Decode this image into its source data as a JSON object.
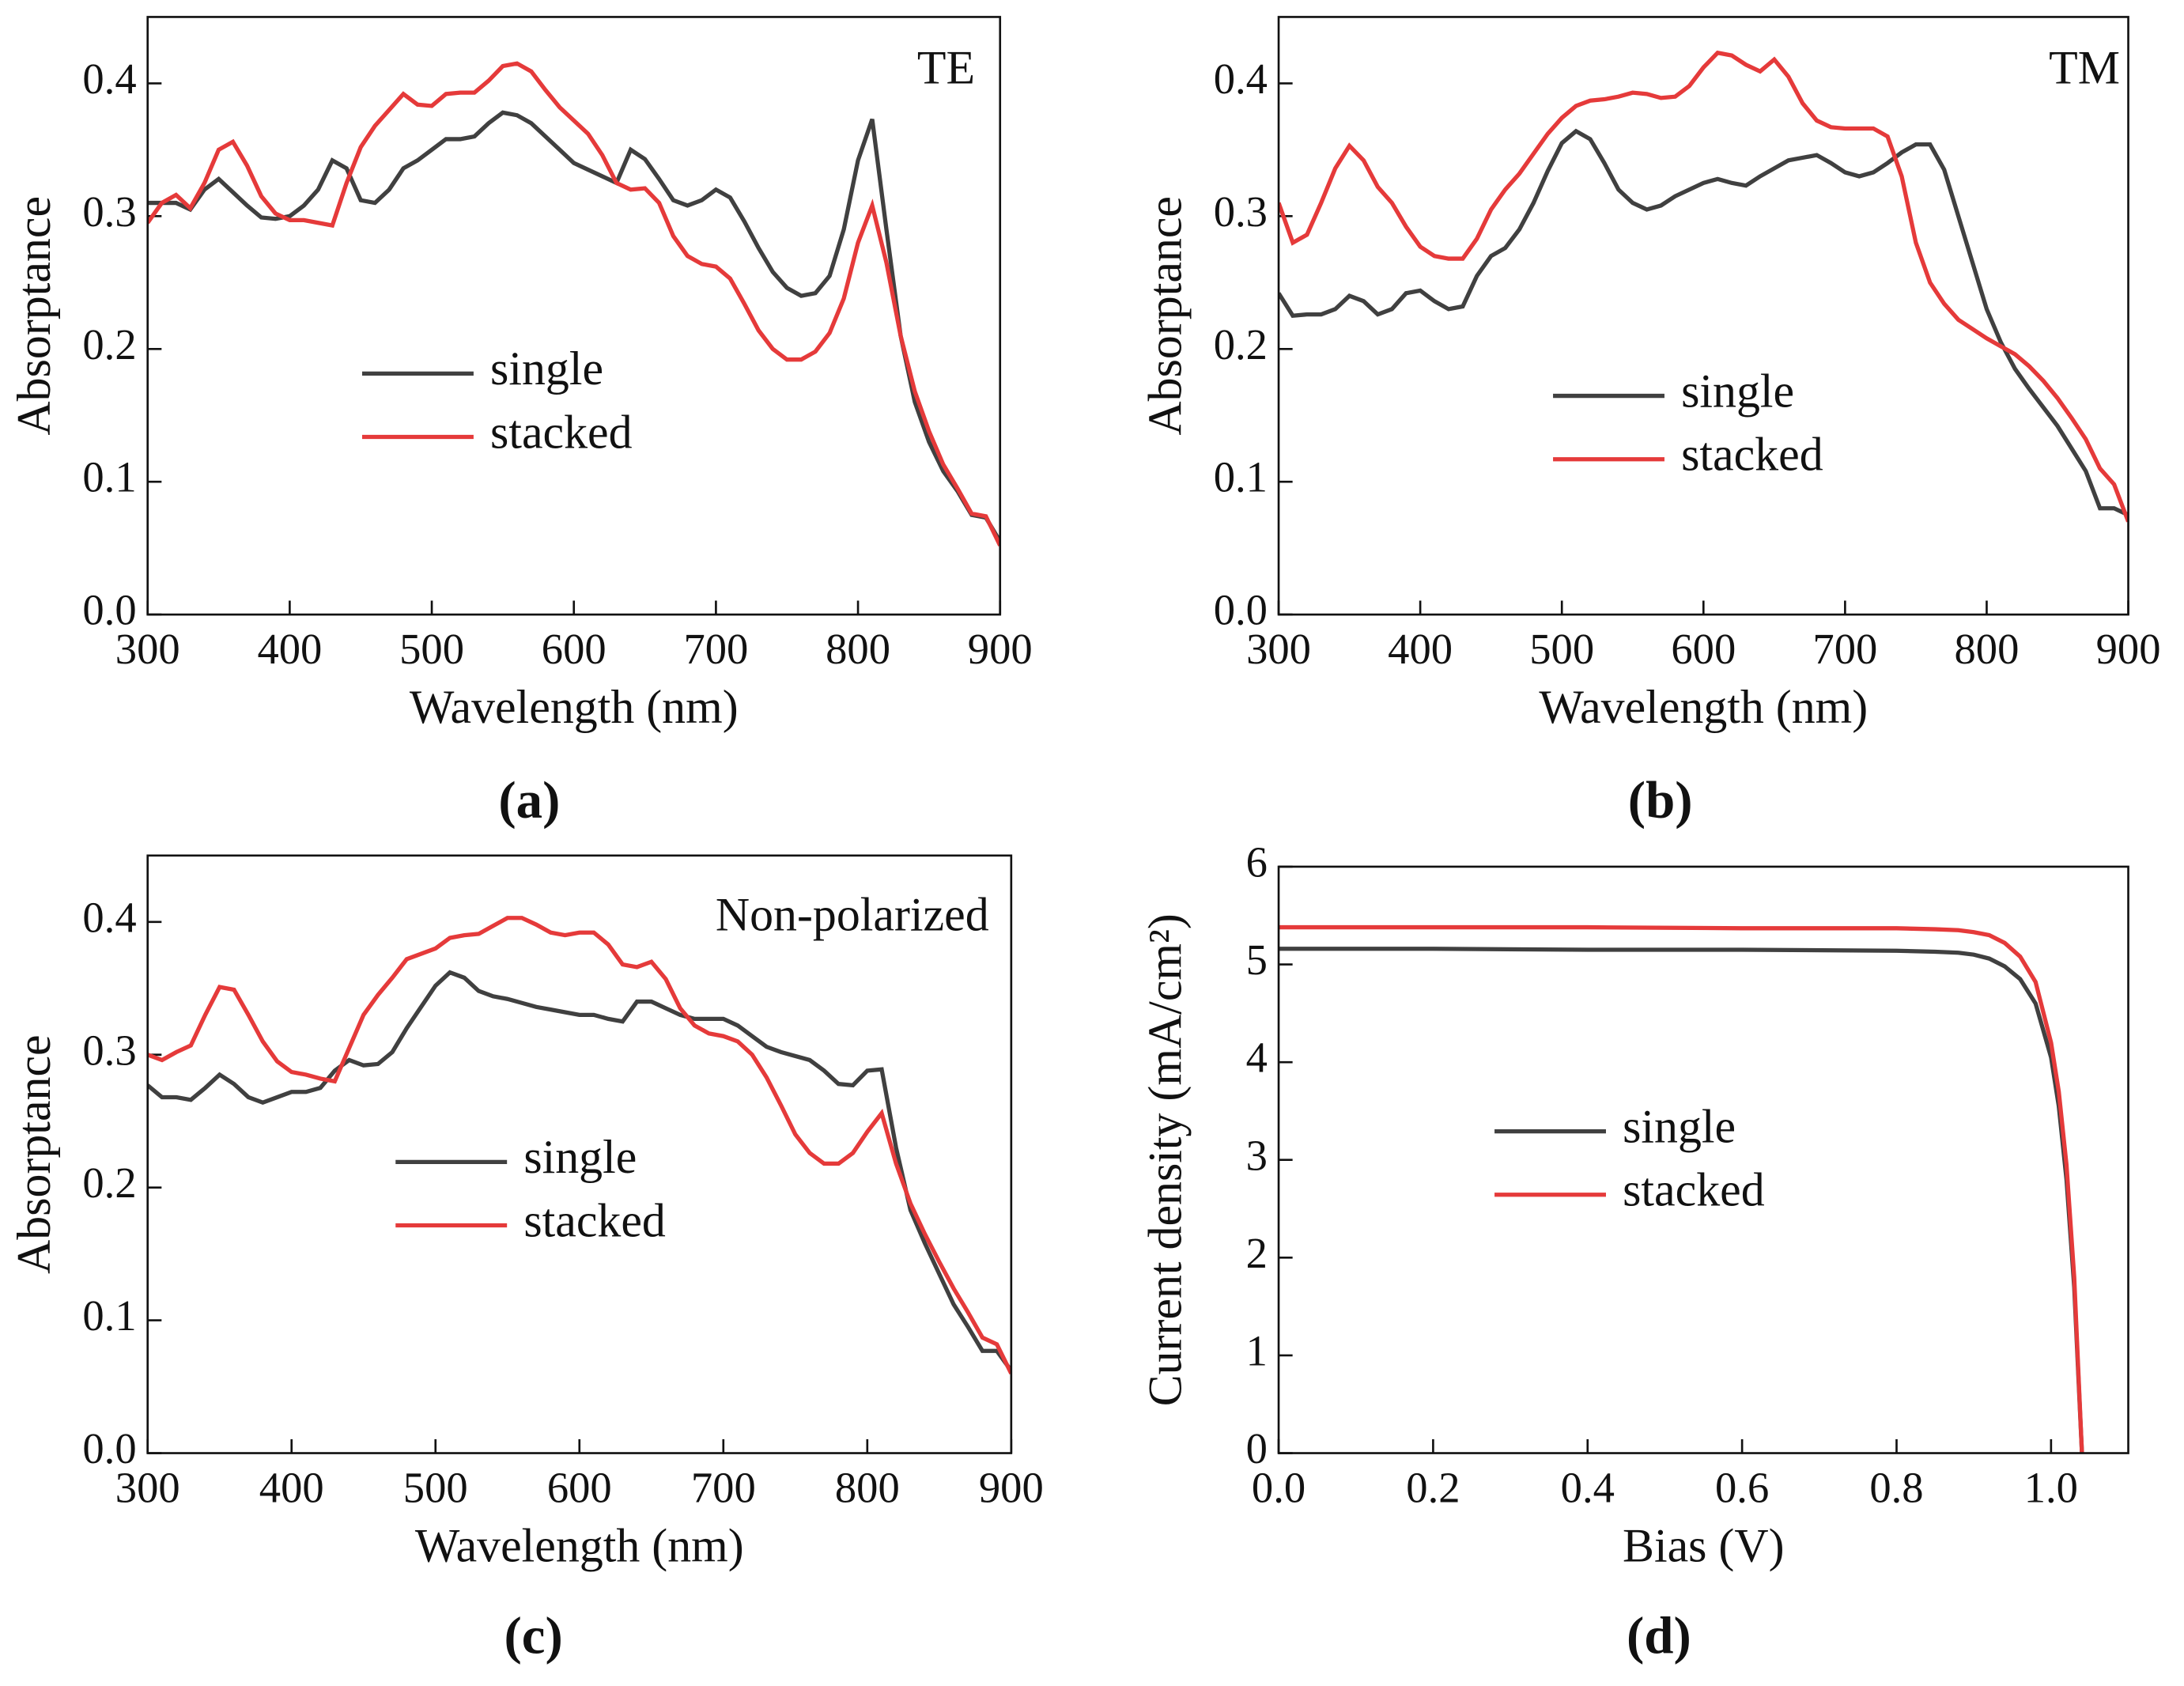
{
  "chart_data": [
    {
      "type": "line",
      "panel": "(a)",
      "annotation": "TE",
      "xlabel": "Wavelength (nm)",
      "ylabel": "Absorptance",
      "xlim": [
        300,
        900
      ],
      "ylim": [
        0,
        0.45
      ],
      "xticks": [
        300,
        400,
        500,
        600,
        700,
        800,
        900
      ],
      "yticks": [
        {
          "value": 0,
          "label": "0.0"
        },
        0.1,
        0.2,
        0.3,
        0.4
      ],
      "x": [
        300,
        310,
        320,
        330,
        340,
        350,
        360,
        370,
        380,
        390,
        400,
        410,
        420,
        430,
        440,
        450,
        460,
        470,
        480,
        490,
        500,
        510,
        520,
        530,
        540,
        550,
        560,
        570,
        580,
        590,
        600,
        610,
        620,
        630,
        640,
        650,
        660,
        670,
        680,
        690,
        700,
        710,
        720,
        730,
        740,
        750,
        760,
        770,
        780,
        790,
        800,
        810,
        820,
        830,
        840,
        850,
        860,
        870,
        880,
        890,
        900
      ],
      "series": [
        {
          "name": "single",
          "color": "#404040",
          "values": [
            0.31,
            0.31,
            0.31,
            0.305,
            0.32,
            0.328,
            0.318,
            0.308,
            0.299,
            0.298,
            0.3,
            0.308,
            0.32,
            0.342,
            0.336,
            0.312,
            0.31,
            0.32,
            0.336,
            0.342,
            0.35,
            0.358,
            0.358,
            0.36,
            0.37,
            0.378,
            0.376,
            0.37,
            0.36,
            0.35,
            0.34,
            0.335,
            0.33,
            0.325,
            0.35,
            0.343,
            0.328,
            0.312,
            0.308,
            0.312,
            0.32,
            0.314,
            0.296,
            0.276,
            0.258,
            0.246,
            0.24,
            0.242,
            0.255,
            0.29,
            0.342,
            0.373,
            0.29,
            0.21,
            0.16,
            0.13,
            0.108,
            0.093,
            0.075,
            0.073,
            0.055
          ]
        },
        {
          "name": "stacked",
          "color": "#e53a3a",
          "values": [
            0.295,
            0.31,
            0.316,
            0.306,
            0.325,
            0.35,
            0.356,
            0.338,
            0.315,
            0.302,
            0.297,
            0.297,
            0.295,
            0.293,
            0.325,
            0.352,
            0.368,
            0.38,
            0.392,
            0.384,
            0.383,
            0.392,
            0.393,
            0.393,
            0.402,
            0.413,
            0.415,
            0.409,
            0.395,
            0.382,
            0.372,
            0.362,
            0.346,
            0.325,
            0.32,
            0.321,
            0.31,
            0.285,
            0.27,
            0.264,
            0.262,
            0.253,
            0.234,
            0.214,
            0.2,
            0.192,
            0.192,
            0.198,
            0.212,
            0.238,
            0.28,
            0.308,
            0.265,
            0.21,
            0.168,
            0.138,
            0.113,
            0.095,
            0.076,
            0.074,
            0.052
          ]
        }
      ]
    },
    {
      "type": "line",
      "panel": "(b)",
      "annotation": "TM",
      "xlabel": "Wavelength (nm)",
      "ylabel": "Absorptance",
      "xlim": [
        300,
        900
      ],
      "ylim": [
        0,
        0.45
      ],
      "xticks": [
        300,
        400,
        500,
        600,
        700,
        800,
        900
      ],
      "yticks": [
        {
          "value": 0,
          "label": "0.0"
        },
        0.1,
        0.2,
        0.3,
        0.4
      ],
      "x": [
        300,
        310,
        320,
        330,
        340,
        350,
        360,
        370,
        380,
        390,
        400,
        410,
        420,
        430,
        440,
        450,
        460,
        470,
        480,
        490,
        500,
        510,
        520,
        530,
        540,
        550,
        560,
        570,
        580,
        590,
        600,
        610,
        620,
        630,
        640,
        650,
        660,
        670,
        680,
        690,
        700,
        710,
        720,
        730,
        740,
        750,
        760,
        770,
        780,
        790,
        800,
        810,
        820,
        830,
        840,
        850,
        860,
        870,
        880,
        890,
        900
      ],
      "series": [
        {
          "name": "single",
          "color": "#404040",
          "values": [
            0.242,
            0.225,
            0.226,
            0.226,
            0.23,
            0.24,
            0.236,
            0.226,
            0.23,
            0.242,
            0.244,
            0.236,
            0.23,
            0.232,
            0.255,
            0.27,
            0.276,
            0.29,
            0.31,
            0.334,
            0.355,
            0.364,
            0.358,
            0.34,
            0.32,
            0.31,
            0.305,
            0.308,
            0.315,
            0.32,
            0.325,
            0.328,
            0.325,
            0.323,
            0.33,
            0.336,
            0.342,
            0.344,
            0.346,
            0.34,
            0.333,
            0.33,
            0.333,
            0.34,
            0.348,
            0.354,
            0.354,
            0.335,
            0.3,
            0.265,
            0.23,
            0.205,
            0.185,
            0.17,
            0.156,
            0.142,
            0.125,
            0.108,
            0.08,
            0.08,
            0.075
          ]
        },
        {
          "name": "stacked",
          "color": "#e53a3a",
          "values": [
            0.31,
            0.28,
            0.286,
            0.31,
            0.336,
            0.353,
            0.342,
            0.322,
            0.31,
            0.292,
            0.277,
            0.27,
            0.268,
            0.268,
            0.283,
            0.305,
            0.32,
            0.332,
            0.347,
            0.362,
            0.374,
            0.383,
            0.387,
            0.388,
            0.39,
            0.393,
            0.392,
            0.389,
            0.39,
            0.398,
            0.412,
            0.423,
            0.421,
            0.414,
            0.409,
            0.418,
            0.405,
            0.385,
            0.372,
            0.367,
            0.366,
            0.366,
            0.366,
            0.36,
            0.33,
            0.28,
            0.25,
            0.234,
            0.222,
            0.215,
            0.208,
            0.202,
            0.196,
            0.187,
            0.176,
            0.163,
            0.148,
            0.132,
            0.11,
            0.098,
            0.07
          ]
        }
      ]
    },
    {
      "type": "line",
      "panel": "(c)",
      "annotation": "Non-polarized",
      "xlabel": "Wavelength (nm)",
      "ylabel": "Absorptance",
      "xlim": [
        300,
        900
      ],
      "ylim": [
        0,
        0.45
      ],
      "xticks": [
        300,
        400,
        500,
        600,
        700,
        800,
        900
      ],
      "yticks": [
        {
          "value": 0,
          "label": "0.0"
        },
        0.1,
        0.2,
        0.3,
        0.4
      ],
      "x": [
        300,
        310,
        320,
        330,
        340,
        350,
        360,
        370,
        380,
        390,
        400,
        410,
        420,
        430,
        440,
        450,
        460,
        470,
        480,
        490,
        500,
        510,
        520,
        530,
        540,
        550,
        560,
        570,
        580,
        590,
        600,
        610,
        620,
        630,
        640,
        650,
        660,
        670,
        680,
        690,
        700,
        710,
        720,
        730,
        740,
        750,
        760,
        770,
        780,
        790,
        800,
        810,
        820,
        830,
        840,
        850,
        860,
        870,
        880,
        890,
        900
      ],
      "series": [
        {
          "name": "single",
          "color": "#404040",
          "values": [
            0.277,
            0.268,
            0.268,
            0.266,
            0.275,
            0.285,
            0.278,
            0.268,
            0.264,
            0.268,
            0.272,
            0.272,
            0.275,
            0.288,
            0.296,
            0.292,
            0.293,
            0.302,
            0.32,
            0.336,
            0.352,
            0.362,
            0.358,
            0.348,
            0.344,
            0.342,
            0.339,
            0.336,
            0.334,
            0.332,
            0.33,
            0.33,
            0.327,
            0.325,
            0.34,
            0.34,
            0.335,
            0.33,
            0.327,
            0.327,
            0.327,
            0.322,
            0.314,
            0.306,
            0.302,
            0.299,
            0.296,
            0.288,
            0.278,
            0.277,
            0.288,
            0.289,
            0.23,
            0.183,
            0.158,
            0.135,
            0.112,
            0.095,
            0.077,
            0.077,
            0.062
          ]
        },
        {
          "name": "stacked",
          "color": "#e53a3a",
          "values": [
            0.3,
            0.296,
            0.302,
            0.307,
            0.33,
            0.351,
            0.349,
            0.33,
            0.31,
            0.295,
            0.287,
            0.285,
            0.282,
            0.28,
            0.305,
            0.33,
            0.345,
            0.358,
            0.372,
            0.376,
            0.38,
            0.388,
            0.39,
            0.391,
            0.397,
            0.403,
            0.403,
            0.398,
            0.392,
            0.39,
            0.392,
            0.392,
            0.383,
            0.368,
            0.366,
            0.37,
            0.357,
            0.335,
            0.322,
            0.316,
            0.314,
            0.31,
            0.3,
            0.283,
            0.262,
            0.24,
            0.226,
            0.218,
            0.218,
            0.226,
            0.242,
            0.256,
            0.218,
            0.188,
            0.165,
            0.144,
            0.124,
            0.106,
            0.087,
            0.082,
            0.06
          ]
        }
      ]
    },
    {
      "type": "line",
      "panel": "(d)",
      "xlabel": "Bias (V)",
      "ylabel": "Current density (mA/cm²)",
      "xlim": [
        0,
        1.1
      ],
      "ylim": [
        0,
        6
      ],
      "xticks": [
        {
          "value": 0,
          "label": "0.0"
        },
        0.2,
        0.4,
        0.6,
        0.8,
        {
          "value": 1,
          "label": "1.0"
        }
      ],
      "yticks": [
        0,
        1,
        2,
        3,
        4,
        5,
        6
      ],
      "x": [
        0,
        0.2,
        0.4,
        0.6,
        0.8,
        0.85,
        0.88,
        0.9,
        0.92,
        0.94,
        0.96,
        0.98,
        1.0,
        1.01,
        1.02,
        1.03,
        1.04
      ],
      "series": [
        {
          "name": "single",
          "color": "#404040",
          "values": [
            5.16,
            5.16,
            5.15,
            5.15,
            5.14,
            5.13,
            5.12,
            5.1,
            5.06,
            4.98,
            4.85,
            4.6,
            4.05,
            3.55,
            2.8,
            1.7,
            0
          ]
        },
        {
          "name": "stacked",
          "color": "#e53a3a",
          "values": [
            5.38,
            5.38,
            5.38,
            5.37,
            5.37,
            5.36,
            5.35,
            5.33,
            5.3,
            5.22,
            5.08,
            4.82,
            4.2,
            3.7,
            2.95,
            1.8,
            0
          ]
        }
      ]
    }
  ]
}
